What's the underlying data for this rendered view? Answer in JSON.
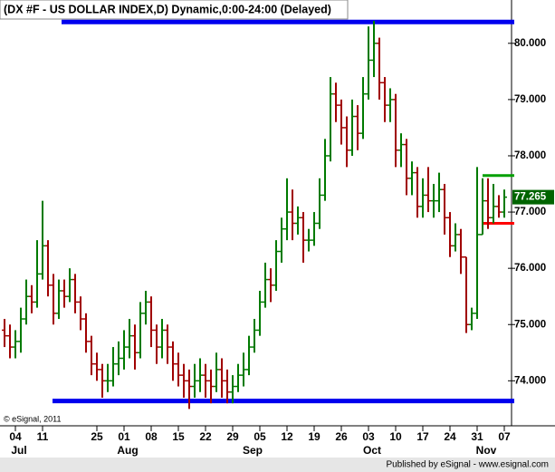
{
  "chart_data": {
    "type": "ohlc",
    "title": "(DX #F - US DOLLAR INDEX,D) Dynamic,0:00-24:00 (Delayed)",
    "copyright": "© eSignal, 2011",
    "footer": "Published by eSignal - www.esignal.com",
    "categories": [
      null,
      null,
      "04",
      null,
      null,
      null,
      null,
      "11",
      null,
      null,
      null,
      null,
      null,
      null,
      null,
      null,
      null,
      "25",
      null,
      null,
      null,
      null,
      "01",
      null,
      null,
      null,
      null,
      "08",
      null,
      null,
      null,
      null,
      "15",
      null,
      null,
      null,
      null,
      "22",
      null,
      null,
      null,
      null,
      "29",
      null,
      null,
      null,
      null,
      "05",
      null,
      null,
      null,
      null,
      "12",
      null,
      null,
      null,
      null,
      "19",
      null,
      null,
      null,
      null,
      "26",
      null,
      null,
      null,
      null,
      "03",
      null,
      null,
      null,
      null,
      "10",
      null,
      null,
      null,
      null,
      "17",
      null,
      null,
      null,
      null,
      "24",
      null,
      null,
      null,
      null,
      "31",
      null,
      null,
      null,
      null,
      "07"
    ],
    "months": [
      {
        "label": "Jul",
        "category": 2
      },
      {
        "label": "Aug",
        "category": 22
      },
      {
        "label": "Sep",
        "category": 45
      },
      {
        "label": "Oct",
        "category": 67
      },
      {
        "label": "Nov",
        "category": 88
      }
    ],
    "open": [
      74.9,
      74.8,
      74.6,
      74.7,
      75.1,
      75.5,
      75.4,
      75.9,
      76.4,
      75.7,
      75.2,
      75.6,
      75.5,
      75.8,
      75.4,
      75.1,
      74.7,
      74.3,
      74.2,
      74.0,
      74.0,
      74.3,
      74.4,
      74.6,
      74.8,
      74.5,
      75.2,
      75.4,
      74.9,
      74.6,
      74.9,
      74.6,
      74.3,
      74.1,
      74.0,
      73.9,
      74.0,
      74.1,
      74.0,
      73.9,
      74.2,
      74.0,
      73.8,
      73.9,
      74.1,
      74.2,
      74.6,
      74.9,
      75.4,
      75.8,
      75.7,
      76.3,
      76.7,
      77.0,
      76.8,
      76.9,
      76.5,
      76.5,
      76.8,
      77.3,
      78.0,
      79.1,
      78.9,
      78.5,
      78.1,
      78.7,
      78.4,
      79.1,
      79.7,
      80.0,
      79.3,
      78.9,
      79.0,
      78.1,
      78.2,
      77.6,
      77.7,
      77.1,
      77.3,
      77.2,
      77.2,
      77.4,
      76.9,
      76.4,
      76.6,
      76.2,
      75.0,
      75.2,
      76.6,
      77.2,
      76.9,
      77.1,
      77.0
    ],
    "high": [
      75.1,
      75.0,
      74.9,
      75.3,
      75.8,
      75.7,
      76.5,
      77.2,
      76.5,
      75.9,
      75.8,
      75.8,
      76.0,
      75.9,
      75.5,
      75.2,
      74.8,
      74.5,
      74.3,
      74.3,
      74.6,
      74.7,
      74.9,
      75.1,
      75.0,
      75.4,
      75.6,
      75.5,
      75.0,
      75.1,
      75.0,
      74.7,
      74.5,
      74.3,
      74.2,
      74.3,
      74.4,
      74.3,
      74.2,
      74.5,
      74.4,
      74.2,
      74.1,
      74.3,
      74.5,
      74.8,
      75.1,
      75.6,
      76.1,
      76.0,
      76.5,
      76.9,
      77.6,
      77.4,
      77.1,
      77.0,
      76.7,
      77.0,
      77.6,
      78.3,
      79.4,
      79.3,
      79.0,
      78.7,
      79.0,
      78.9,
      79.4,
      80.3,
      80.4,
      80.1,
      79.4,
      79.2,
      79.1,
      78.4,
      78.3,
      77.9,
      77.8,
      77.6,
      77.8,
      77.5,
      77.7,
      77.5,
      77.0,
      76.8,
      76.7,
      76.2,
      75.3,
      77.8,
      77.6,
      77.6,
      77.5,
      77.3,
      77.4
    ],
    "low": [
      74.6,
      74.4,
      74.4,
      74.5,
      75.0,
      75.2,
      75.3,
      75.8,
      75.5,
      75.0,
      75.1,
      75.3,
      75.4,
      75.2,
      74.9,
      74.5,
      74.1,
      74.0,
      73.7,
      73.8,
      73.9,
      74.1,
      74.2,
      74.4,
      74.2,
      74.4,
      75.0,
      74.6,
      74.3,
      74.4,
      74.3,
      74.0,
      73.9,
      73.7,
      73.5,
      73.7,
      73.8,
      73.7,
      73.6,
      73.8,
      73.7,
      73.6,
      73.6,
      73.8,
      73.9,
      74.1,
      74.5,
      74.8,
      75.3,
      75.4,
      75.6,
      76.1,
      76.5,
      76.5,
      76.6,
      76.1,
      76.3,
      76.4,
      76.7,
      77.2,
      77.9,
      78.6,
      78.2,
      77.8,
      78.0,
      78.1,
      78.3,
      79.0,
      79.4,
      79.0,
      78.6,
      78.6,
      77.8,
      77.8,
      77.3,
      77.3,
      76.9,
      76.9,
      77.0,
      76.9,
      77.0,
      76.6,
      76.2,
      76.3,
      75.9,
      74.85,
      74.9,
      75.1,
      76.6,
      76.7,
      76.8,
      76.9,
      76.9
    ],
    "close": [
      74.8,
      74.6,
      74.7,
      75.1,
      75.5,
      75.4,
      75.9,
      76.4,
      75.7,
      75.2,
      75.6,
      75.5,
      75.8,
      75.4,
      75.1,
      74.7,
      74.3,
      74.2,
      74.0,
      74.0,
      74.3,
      74.4,
      74.6,
      74.8,
      74.5,
      75.2,
      75.4,
      74.9,
      74.6,
      74.9,
      74.6,
      74.3,
      74.1,
      74.0,
      73.9,
      74.0,
      74.1,
      74.0,
      73.9,
      74.2,
      74.0,
      73.8,
      73.9,
      74.1,
      74.2,
      74.6,
      74.9,
      75.4,
      75.8,
      75.7,
      76.3,
      76.7,
      77.0,
      76.8,
      76.9,
      76.5,
      76.5,
      76.8,
      77.3,
      78.0,
      79.1,
      78.9,
      78.5,
      78.1,
      78.7,
      78.4,
      79.1,
      79.7,
      80.0,
      79.3,
      78.9,
      79.0,
      78.1,
      78.2,
      77.6,
      77.7,
      77.1,
      77.3,
      77.2,
      77.2,
      77.4,
      76.9,
      76.4,
      76.6,
      76.2,
      75.0,
      75.2,
      76.6,
      77.2,
      76.9,
      77.1,
      77.0,
      77.265
    ],
    "up_color": "#007a00",
    "down_color": "#a00000",
    "last_color": "#006400",
    "levels": [
      {
        "value": 80.38,
        "color": "#0000ee"
      },
      {
        "value": 73.64,
        "color": "#0000ee"
      },
      {
        "value": 77.65,
        "color": "#00a000"
      },
      {
        "value": 76.8,
        "color": "#ff0000"
      }
    ],
    "ylim": [
      73.2,
      80.77
    ],
    "yticks": [
      {
        "value": 74,
        "label": "74.000"
      },
      {
        "value": 75,
        "label": "75.000"
      },
      {
        "value": 76,
        "label": "76.000"
      },
      {
        "value": 77,
        "label": "77.000"
      },
      {
        "value": 78,
        "label": "78.000"
      },
      {
        "value": 79,
        "label": "79.000"
      },
      {
        "value": 80,
        "label": "80.000"
      }
    ]
  }
}
